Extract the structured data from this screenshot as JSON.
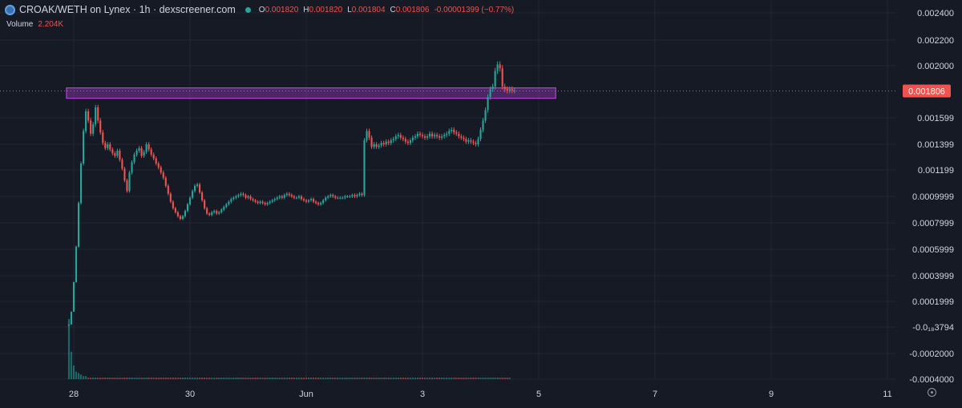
{
  "header": {
    "symbol_line": "CROAK/WETH on Lynex · 1h · dexscreener.com",
    "o_label": "O",
    "o_value": "0.001820",
    "h_label": "H",
    "h_value": "0.001820",
    "l_label": "L",
    "l_value": "0.001804",
    "c_label": "C",
    "c_value": "0.001806",
    "change": "-0.00001399 (−0.77%)",
    "volume_label": "Volume",
    "volume_value": "2.204K"
  },
  "colors": {
    "up": "#26a69a",
    "down": "#ef5350",
    "zone": "#b43fd9",
    "background": "#161a25"
  },
  "chart_data": {
    "type": "candlestick",
    "title": "",
    "timeframe": "1h",
    "current_price": 0.001806,
    "current_price_label": "0.001806",
    "y_ticks": [
      "0.002400",
      "0.002200",
      "0.002000",
      "0.001599",
      "0.001399",
      "0.001199",
      "0.0009999",
      "0.0007999",
      "0.0005999",
      "0.0003999",
      "0.0001999",
      "-0.0₁₈3794",
      "-0.0002000",
      "-0.0004000"
    ],
    "y_tick_values": [
      0.0024,
      0.0022,
      0.002,
      0.0016,
      0.0014,
      0.0012,
      0.001,
      0.0008,
      0.0006,
      0.0004,
      0.0002,
      0,
      -0.0002,
      -0.0004
    ],
    "x_ticks": [
      "28",
      "30",
      "Jun",
      "3",
      "5",
      "7",
      "9",
      "11"
    ],
    "x_tick_hours": [
      0,
      48,
      96,
      144,
      192,
      240,
      288,
      336
    ],
    "resistance_zone": {
      "low": 0.00175,
      "high": 0.00183,
      "from_hour": -3,
      "to_hour": 199
    },
    "volume_series_k": [
      40,
      18,
      9,
      5,
      4,
      3,
      2,
      2,
      1,
      1,
      1,
      1,
      1,
      1,
      1,
      1,
      1,
      1,
      1,
      1,
      1,
      1,
      1,
      1,
      1,
      1,
      1,
      1,
      1,
      1,
      1,
      1,
      1,
      1,
      1,
      1,
      1,
      1,
      1,
      1,
      1,
      1,
      1,
      1,
      1,
      1,
      1,
      1,
      1,
      1,
      1,
      1,
      1,
      1,
      1,
      1,
      1,
      1,
      1,
      1,
      1,
      1,
      1,
      1,
      1,
      1,
      1,
      1,
      1,
      1,
      1,
      1,
      1,
      1,
      1,
      1,
      1,
      1,
      1,
      1,
      1,
      1,
      1,
      1,
      1,
      1,
      1,
      1,
      1,
      1,
      1,
      1,
      1,
      1,
      1,
      1,
      1,
      1,
      1,
      1,
      1,
      1,
      1,
      1,
      1,
      1,
      1,
      1,
      1,
      1,
      1,
      1,
      1,
      1,
      1,
      1,
      1,
      1,
      1,
      1,
      1,
      1,
      1,
      1,
      1,
      1,
      1,
      1,
      1,
      1,
      1,
      1,
      1,
      1,
      1,
      1,
      1,
      1,
      1,
      1,
      1,
      1,
      1,
      1,
      1,
      1,
      1,
      1,
      1,
      1,
      1,
      1,
      1,
      1,
      1,
      1,
      1,
      1,
      1,
      1,
      1,
      1,
      1,
      1,
      1,
      1,
      1,
      1,
      1,
      1,
      1,
      1,
      1,
      1,
      1,
      1,
      1,
      1,
      1,
      1,
      1,
      1,
      1
    ],
    "close_series": [
      2e-05,
      0.00012,
      0.00035,
      0.00062,
      0.00095,
      0.00125,
      0.0015,
      0.00165,
      0.00158,
      0.00148,
      0.00155,
      0.00168,
      0.00158,
      0.00149,
      0.00141,
      0.00137,
      0.0014,
      0.00136,
      0.00133,
      0.00131,
      0.00135,
      0.00128,
      0.00121,
      0.00112,
      0.00104,
      0.00118,
      0.00126,
      0.00132,
      0.00135,
      0.00137,
      0.00131,
      0.00134,
      0.0014,
      0.00136,
      0.00132,
      0.00129,
      0.00125,
      0.00122,
      0.00118,
      0.00114,
      0.00108,
      0.00102,
      0.00096,
      0.00091,
      0.00088,
      0.00085,
      0.00083,
      0.00085,
      0.00089,
      0.00094,
      0.00099,
      0.00104,
      0.00108,
      0.00109,
      0.00103,
      0.00097,
      0.00091,
      0.00087,
      0.00086,
      0.00088,
      0.00089,
      0.00087,
      0.00088,
      0.0009,
      0.00092,
      0.00094,
      0.00096,
      0.00098,
      0.00099,
      0.001,
      0.00101,
      0.00102,
      0.00101,
      0.00099,
      0.001,
      0.00098,
      0.00097,
      0.00096,
      0.00095,
      0.00096,
      0.00095,
      0.00094,
      0.00095,
      0.00096,
      0.00097,
      0.00098,
      0.00099,
      0.001,
      0.00099,
      0.00101,
      0.00102,
      0.00101,
      0.001,
      0.00099,
      0.00099,
      0.001,
      0.00098,
      0.00097,
      0.00096,
      0.00097,
      0.00098,
      0.00096,
      0.00095,
      0.00094,
      0.00095,
      0.00097,
      0.00099,
      0.001,
      0.00101,
      0.001,
      0.00099,
      0.00099,
      0.00099,
      0.00099,
      0.001,
      0.001,
      0.001,
      0.00101,
      0.001,
      0.00101,
      0.00102,
      0.00101,
      0.00143,
      0.0015,
      0.00145,
      0.00138,
      0.0014,
      0.00138,
      0.00139,
      0.00141,
      0.0014,
      0.00142,
      0.00141,
      0.00143,
      0.00144,
      0.00146,
      0.00147,
      0.00145,
      0.00144,
      0.00142,
      0.00141,
      0.00143,
      0.00145,
      0.00146,
      0.00148,
      0.00147,
      0.00146,
      0.00145,
      0.00146,
      0.00148,
      0.00146,
      0.00147,
      0.00146,
      0.00145,
      0.00146,
      0.00147,
      0.00148,
      0.0015,
      0.00151,
      0.00149,
      0.00148,
      0.00146,
      0.00145,
      0.00144,
      0.00142,
      0.00143,
      0.00142,
      0.00141,
      0.0014,
      0.00144,
      0.00151,
      0.00158,
      0.00166,
      0.00176,
      0.00182,
      0.00184,
      0.00196,
      0.00201,
      0.00198,
      0.00184,
      0.00182,
      0.00181,
      0.00182,
      0.00181,
      0.00181
    ],
    "start_hour": -2,
    "ylim": [
      -0.0004,
      0.0025
    ]
  }
}
